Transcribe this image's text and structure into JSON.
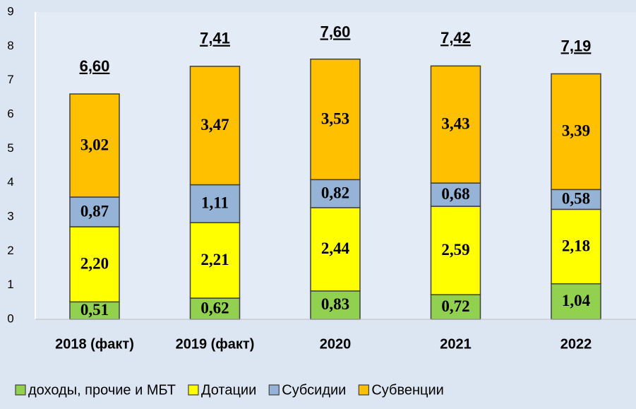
{
  "chart_data": {
    "type": "stacked_bar",
    "categories": [
      "2018 (факт)",
      "2019 (факт)",
      "2020",
      "2021",
      "2022"
    ],
    "series": [
      {
        "name": "доходы, прочие и МБТ",
        "color": "#92d050",
        "values": [
          0.51,
          0.62,
          0.83,
          0.72,
          1.04
        ],
        "value_labels": [
          "0,51",
          "0,62",
          "0,83",
          "0,72",
          "1,04"
        ]
      },
      {
        "name": "Дотации",
        "color": "#ffff00",
        "values": [
          2.2,
          2.21,
          2.44,
          2.59,
          2.18
        ],
        "value_labels": [
          "2,20",
          "2,21",
          "2,44",
          "2,59",
          "2,18"
        ]
      },
      {
        "name": "Субсидии",
        "color": "#95b3d7",
        "values": [
          0.87,
          1.11,
          0.82,
          0.68,
          0.58
        ],
        "value_labels": [
          "0,87",
          "1,11",
          "0,82",
          "0,68",
          "0,58"
        ]
      },
      {
        "name": "Субвенции",
        "color": "#ffc000",
        "values": [
          3.02,
          3.47,
          3.53,
          3.43,
          3.39
        ],
        "value_labels": [
          "3,02",
          "3,47",
          "3,53",
          "3,43",
          "3,39"
        ]
      }
    ],
    "totals": {
      "values": [
        6.6,
        7.41,
        7.6,
        7.42,
        7.19
      ],
      "value_labels": [
        "6,60",
        "7,41",
        "7,60",
        "7,42",
        "7,19"
      ]
    },
    "ylim": [
      0,
      9
    ],
    "yticks": [
      0,
      1,
      2,
      3,
      4,
      5,
      6,
      7,
      8,
      9
    ]
  }
}
